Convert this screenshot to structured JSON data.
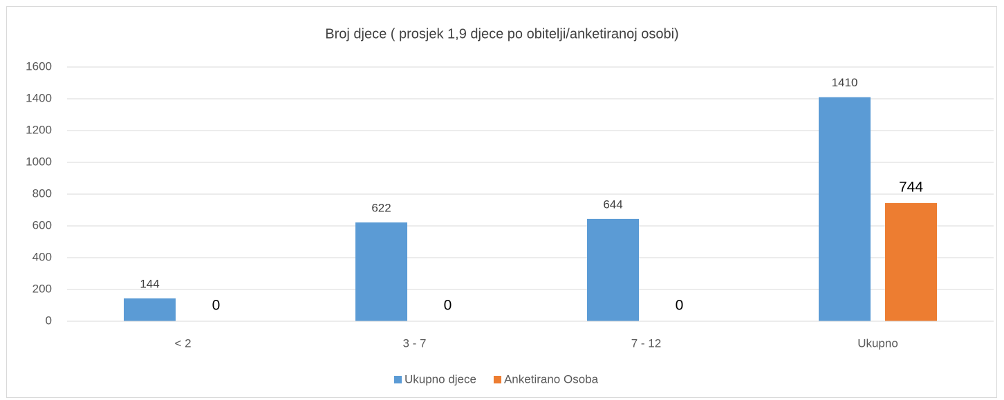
{
  "chart_data": {
    "type": "bar",
    "title": "Broj djece ( prosjek 1,9 djece po obitelji/anketiranoj osobi)",
    "categories": [
      "< 2",
      "3 - 7",
      "7 - 12",
      "Ukupno"
    ],
    "series": [
      {
        "name": "Ukupno djece",
        "color": "#5b9bd5",
        "values": [
          144,
          622,
          644,
          1410
        ]
      },
      {
        "name": "Anketirano Osoba",
        "color": "#ed7d31",
        "values": [
          0,
          0,
          0,
          744
        ]
      }
    ],
    "ylim": [
      0,
      1600
    ],
    "yticks": [
      0,
      200,
      400,
      600,
      800,
      1000,
      1200,
      1400,
      1600
    ],
    "grid": true,
    "legend": "bottom"
  }
}
